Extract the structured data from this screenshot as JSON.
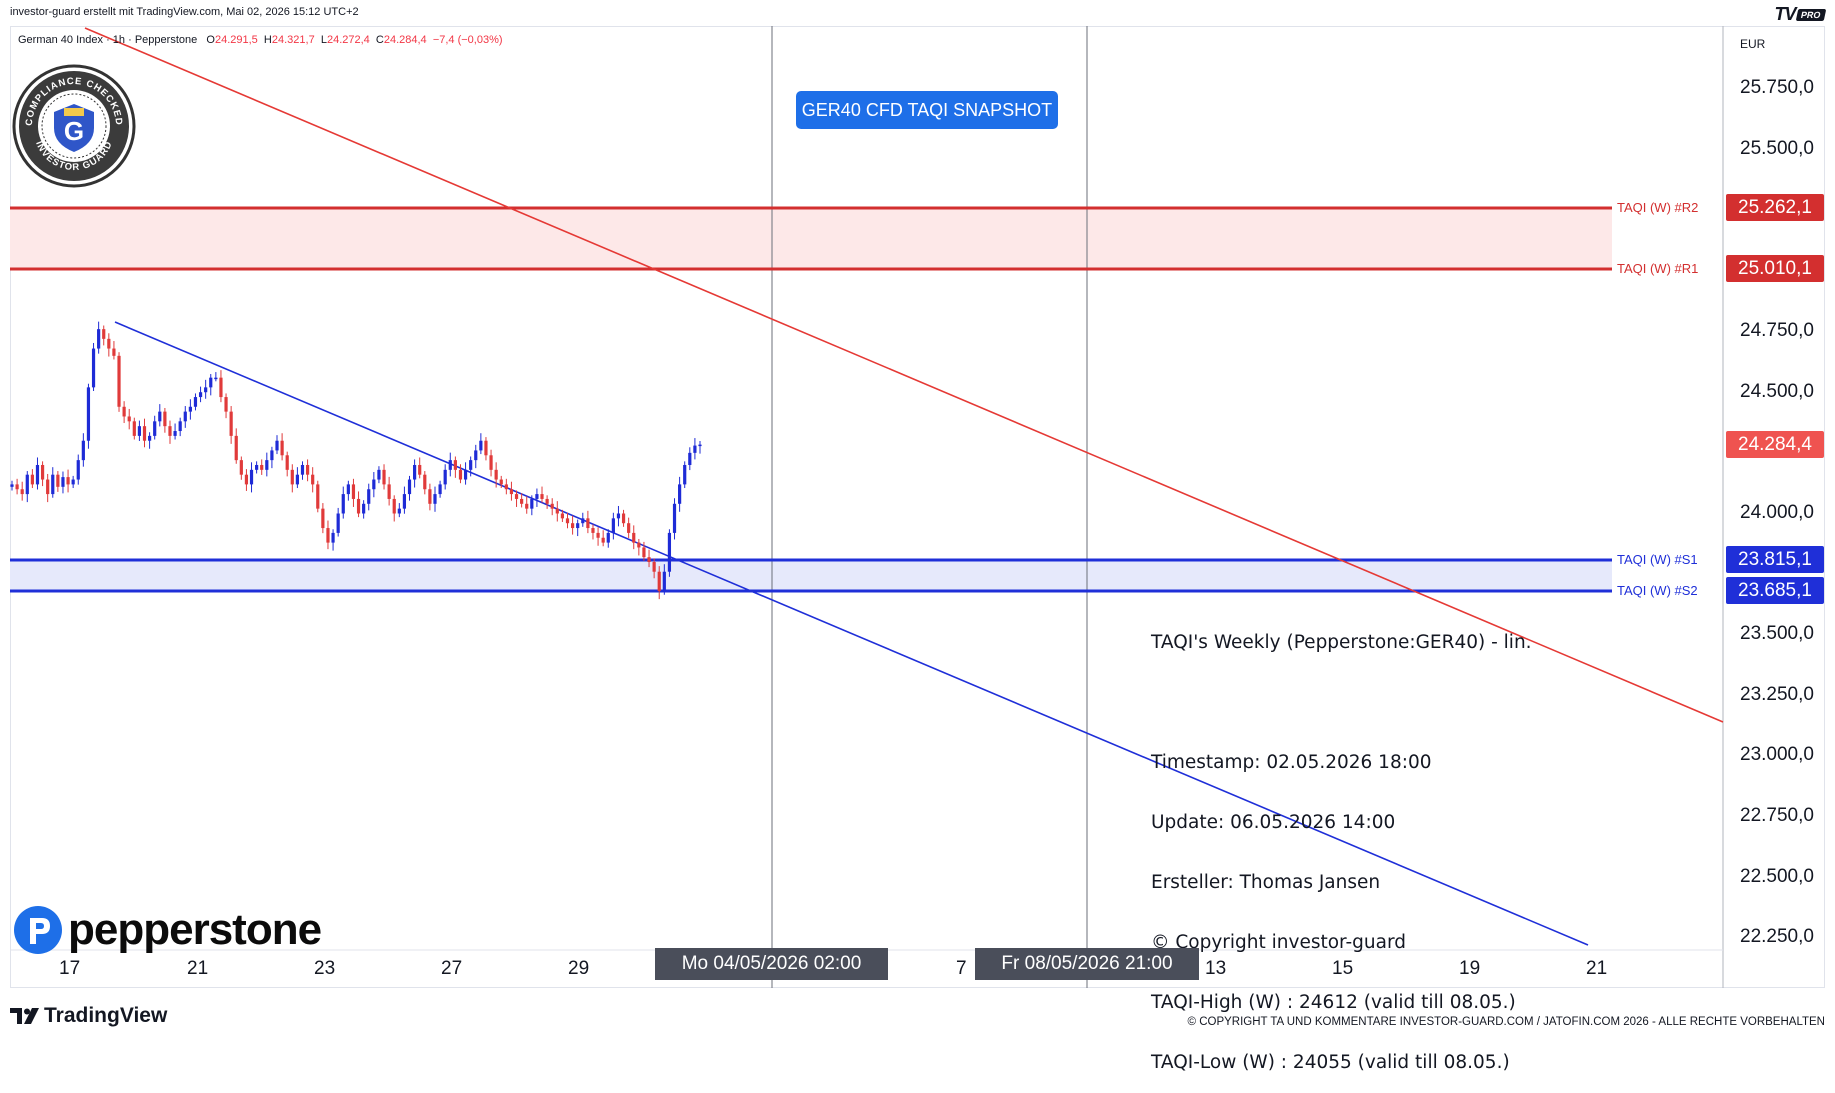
{
  "header": {
    "caption": "investor-guard erstellt mit TradingView.com, Mai 02, 2026 15:12 UTC+2",
    "tv_logo": "TV",
    "tv_badge": "PRO"
  },
  "symbol": {
    "name": "German 40 Index",
    "interval": "1h",
    "broker": "Pepperstone",
    "o_label": "O",
    "o": "24.291,5",
    "h_label": "H",
    "h": "24.321,7",
    "l_label": "L",
    "l": "24.272,4",
    "c_label": "C",
    "c": "24.284,4",
    "change": "−7,4 (−0,03%)"
  },
  "seal": {
    "text_top": "COMPLIANCE CHECKED",
    "text_bottom": "INVESTOR GUARD",
    "letter": "G"
  },
  "chart_title_badge": "GER40 CFD TAQI SNAPSHOT",
  "info": {
    "title": "TAQI's Weekly (Pepperstone:GER40) - lin.",
    "timestamp": "Timestamp: 02.05.2026 18:00",
    "update": "Update: 06.05.2026 14:00",
    "author": "Ersteller: Thomas Jansen",
    "copyright": "© Copyright investor-guard",
    "taqi_high": "TAQI-High (W) : 24612 (valid till 08.05.)",
    "taqi_low": "TAQI-Low (W) : 24055 (valid till 08.05.)"
  },
  "currency": "EUR",
  "price_axis": [
    "25.750,0",
    "25.500,0",
    "24.750,0",
    "24.500,0",
    "24.000,0",
    "23.500,0",
    "23.250,0",
    "23.000,0",
    "22.750,0",
    "22.500,0",
    "22.250,0"
  ],
  "levels": [
    {
      "name": "TAQI (W) #R2",
      "price": "25.262,1",
      "color": "#d32f2f"
    },
    {
      "name": "TAQI (W) #R1",
      "price": "25.010,1",
      "color": "#d32f2f"
    },
    {
      "name": "TAQI (W) #S1",
      "price": "23.815,1",
      "color": "#1f2fd8"
    },
    {
      "name": "TAQI (W) #S2",
      "price": "23.685,1",
      "color": "#1f2fd8"
    }
  ],
  "last_price": "24.284,4",
  "time_axis": [
    "17",
    "21",
    "23",
    "27",
    "29",
    "7",
    "13",
    "15",
    "19",
    "21"
  ],
  "crosshair_labels": {
    "left": "Mo 04/05/2026   02:00",
    "right": "Fr 08/05/2026   21:00"
  },
  "footer": {
    "tradingview": "TradingView",
    "copyright": "© COPYRIGHT TA UND KOMMENTARE INVESTOR-GUARD.COM / JATOFIN.COM 2026 - ALLE RECHTE VORBEHALTEN"
  },
  "brand": {
    "pepperstone": "pepperstone"
  },
  "colors": {
    "up": "#1e2bd6",
    "down": "#e03a3a",
    "resistance": "#d32f2f",
    "support": "#1f2fd8",
    "badge": "#1e6fe8"
  },
  "chart_data": {
    "type": "candlestick",
    "title": "",
    "ylim": [
      22250,
      25900
    ],
    "x_ticks": [
      "17",
      "21",
      "23",
      "27",
      "29",
      "7",
      "13",
      "15",
      "19",
      "21"
    ],
    "levels": [
      25262.1,
      25010.1,
      23815.1,
      23685.1
    ],
    "trendlines": [
      {
        "color": "red",
        "from": {
          "x": "Apr 16",
          "y": 25900
        },
        "to": {
          "x": "May 22",
          "y": 23100
        }
      },
      {
        "color": "blue",
        "from": {
          "x": "Apr 18",
          "y": 24800
        },
        "to": {
          "x": "May 21",
          "y": 22250
        }
      }
    ],
    "close_path": [
      24120,
      24100,
      24080,
      24160,
      24120,
      24200,
      24140,
      24080,
      24160,
      24110,
      24150,
      24120,
      24140,
      24220,
      24300,
      24520,
      24680,
      24760,
      24720,
      24680,
      24650,
      24440,
      24400,
      24380,
      24320,
      24360,
      24300,
      24320,
      24380,
      24420,
      24360,
      24320,
      24340,
      24380,
      24420,
      24440,
      24480,
      24500,
      24520,
      24560,
      24560,
      24480,
      24420,
      24320,
      24220,
      24160,
      24120,
      24180,
      24200,
      24180,
      24220,
      24260,
      24300,
      24240,
      24180,
      24120,
      24160,
      24200,
      24160,
      24120,
      24020,
      23940,
      23880,
      23920,
      24000,
      24080,
      24120,
      24060,
      24000,
      24040,
      24100,
      24140,
      24180,
      24120,
      24060,
      24000,
      24020,
      24080,
      24140,
      24200,
      24160,
      24100,
      24040,
      24080,
      24120,
      24180,
      24220,
      24180,
      24140,
      24180,
      24220,
      24260,
      24300,
      24240,
      24180,
      24140,
      24120,
      24100,
      24080,
      24060,
      24040,
      24020,
      24060,
      24080,
      24060,
      24040,
      24020,
      24000,
      23980,
      23960,
      23940,
      23960,
      23980,
      23940,
      23920,
      23900,
      23880,
      23920,
      23980,
      24000,
      23960,
      23920,
      23880,
      23860,
      23820,
      23800,
      23760,
      23680,
      23760,
      23920,
      24040,
      24120,
      24200,
      24250,
      24280,
      24284
    ]
  }
}
